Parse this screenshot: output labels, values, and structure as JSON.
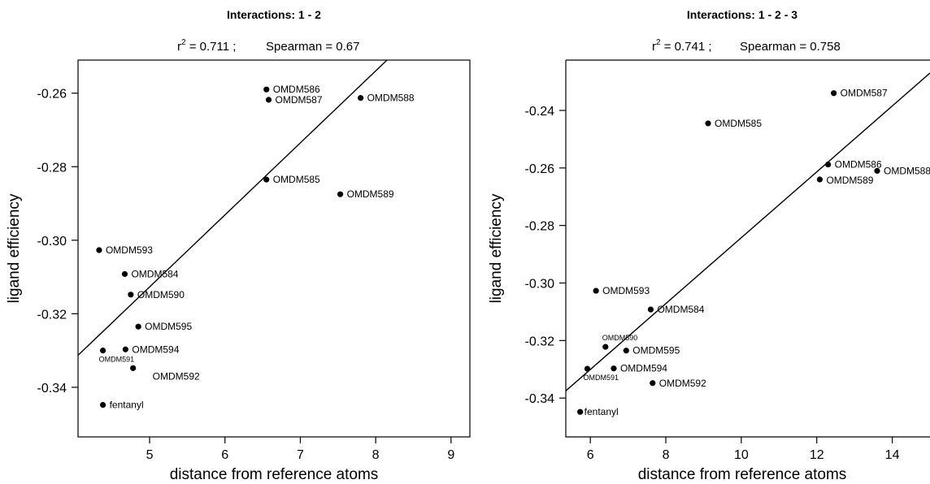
{
  "chart_data": [
    {
      "type": "scatter",
      "title": "Interactions: 1 - 2",
      "stats": {
        "r2_label": "r",
        "r2_sup": "2",
        "r2_value": " = 0.711 ;",
        "spearman": "Spearman = 0.67"
      },
      "xlabel": "distance from reference atoms",
      "ylabel": "ligand efficiency",
      "xlim": [
        4.05,
        9.25
      ],
      "ylim": [
        -0.3535,
        -0.251
      ],
      "xticks": [
        5,
        6,
        7,
        8,
        9
      ],
      "yticks": [
        -0.26,
        -0.28,
        -0.3,
        -0.32,
        -0.34
      ],
      "ytick_labels": [
        "-0.26",
        "-0.28",
        "-0.30",
        "-0.32",
        "-0.34"
      ],
      "fit_line": {
        "x": [
          4.05,
          8.15
        ],
        "y": [
          -0.3313,
          -0.251
        ]
      },
      "points": [
        {
          "name": "OMDM586",
          "x": 6.55,
          "y": -0.259
        },
        {
          "name": "OMDM587",
          "x": 6.58,
          "y": -0.2618
        },
        {
          "name": "OMDM588",
          "x": 7.8,
          "y": -0.2613
        },
        {
          "name": "OMDM585",
          "x": 6.55,
          "y": -0.2835
        },
        {
          "name": "OMDM589",
          "x": 7.53,
          "y": -0.2875
        },
        {
          "name": "OMDM593",
          "x": 4.33,
          "y": -0.3027
        },
        {
          "name": "OMDM584",
          "x": 4.67,
          "y": -0.3092
        },
        {
          "name": "OMDM590",
          "x": 4.75,
          "y": -0.3148
        },
        {
          "name": "OMDM595",
          "x": 4.85,
          "y": -0.3235
        },
        {
          "name": "OMDM594",
          "x": 4.68,
          "y": -0.3297
        },
        {
          "name": "OMDM591",
          "x": 4.38,
          "y": -0.33
        },
        {
          "name": "OMDM592",
          "x": 4.78,
          "y": -0.3348
        },
        {
          "name": "fentanyl",
          "x": 4.38,
          "y": -0.3448
        }
      ]
    },
    {
      "type": "scatter",
      "title": "Interactions: 1 - 2 - 3",
      "stats": {
        "r2_label": "r",
        "r2_sup": "2",
        "r2_value": " = 0.741 ;",
        "spearman": "Spearman = 0.758"
      },
      "xlabel": "distance from reference atoms",
      "ylabel": "ligand efficiency",
      "xlim": [
        5.35,
        15.0
      ],
      "ylim": [
        -0.3535,
        -0.2225
      ],
      "xticks": [
        6,
        8,
        10,
        12,
        14
      ],
      "yticks": [
        -0.24,
        -0.26,
        -0.28,
        -0.3,
        -0.32,
        -0.34
      ],
      "ytick_labels": [
        "-0.24",
        "-0.26",
        "-0.28",
        "-0.30",
        "-0.32",
        "-0.34"
      ],
      "fit_line": {
        "x": [
          5.35,
          15.0
        ],
        "y": [
          -0.3375,
          -0.227
        ]
      },
      "points": [
        {
          "name": "OMDM587",
          "x": 12.45,
          "y": -0.234
        },
        {
          "name": "OMDM585",
          "x": 9.12,
          "y": -0.2445
        },
        {
          "name": "OMDM586",
          "x": 12.3,
          "y": -0.2588
        },
        {
          "name": "OMDM588",
          "x": 13.6,
          "y": -0.261
        },
        {
          "name": "OMDM589",
          "x": 12.08,
          "y": -0.264
        },
        {
          "name": "OMDM593",
          "x": 6.15,
          "y": -0.3027
        },
        {
          "name": "OMDM584",
          "x": 7.6,
          "y": -0.3092
        },
        {
          "name": "OMDM590",
          "x": 6.4,
          "y": -0.3222
        },
        {
          "name": "OMDM595",
          "x": 6.95,
          "y": -0.3235
        },
        {
          "name": "OMDM591",
          "x": 5.92,
          "y": -0.3298
        },
        {
          "name": "OMDM594",
          "x": 6.62,
          "y": -0.3297
        },
        {
          "name": "OMDM592",
          "x": 7.65,
          "y": -0.3348
        },
        {
          "name": "fentanyl",
          "x": 5.73,
          "y": -0.3448
        }
      ]
    }
  ]
}
